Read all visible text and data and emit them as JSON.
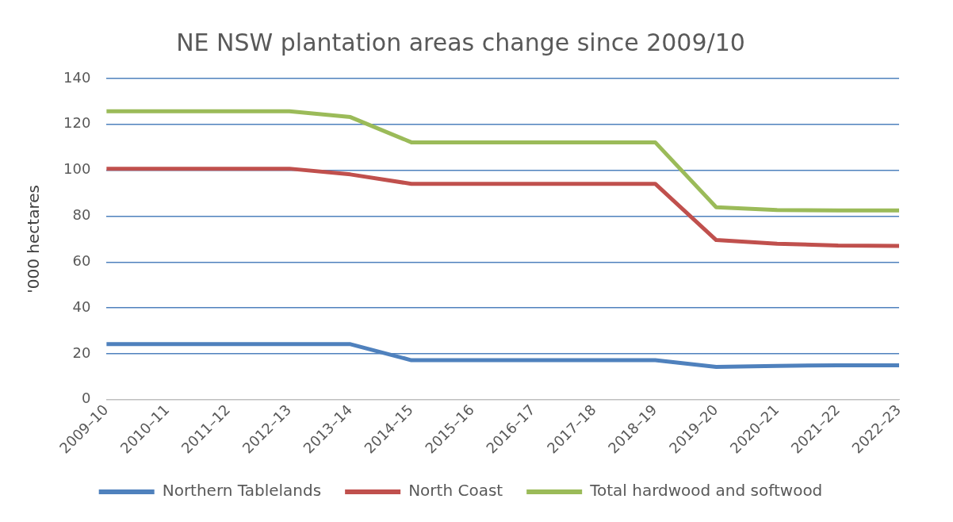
{
  "chart_data": {
    "type": "line",
    "title": "NE NSW plantation areas change since 2009/10",
    "ylabel": "'000 hectares",
    "categories": [
      "2009–10",
      "2010–11",
      "2011–12",
      "2012–13",
      "2013–14",
      "2014–15",
      "2015–16",
      "2016–17",
      "2017–18",
      "2018–19",
      "2019–20",
      "2020–21",
      "2021–22",
      "2022–23"
    ],
    "series": [
      {
        "name": "Northern Tablelands",
        "color": "#4f81bd",
        "values": [
          24.2,
          24.2,
          24.2,
          24.2,
          24.2,
          17.2,
          17.2,
          17.2,
          17.2,
          17.2,
          14.3,
          14.7,
          15,
          15
        ]
      },
      {
        "name": "North Coast",
        "color": "#c0504d",
        "values": [
          100.7,
          100.7,
          100.7,
          100.7,
          98.2,
          94.1,
          94.1,
          94.1,
          94.1,
          94.1,
          69.6,
          68,
          67.2,
          67
        ]
      },
      {
        "name": "Total hardwood and softwood",
        "color": "#9bbb59",
        "values": [
          125.7,
          125.7,
          125.7,
          125.7,
          123.2,
          112.2,
          112.2,
          112.2,
          112.2,
          112.2,
          83.9,
          82.7,
          82.5,
          82.5
        ]
      }
    ],
    "ylim": [
      0,
      140
    ],
    "yticks": [
      0,
      20,
      40,
      60,
      80,
      100,
      120,
      140
    ],
    "grid": "y",
    "legend": "bottom",
    "marker": "none",
    "line_style": "solid"
  }
}
